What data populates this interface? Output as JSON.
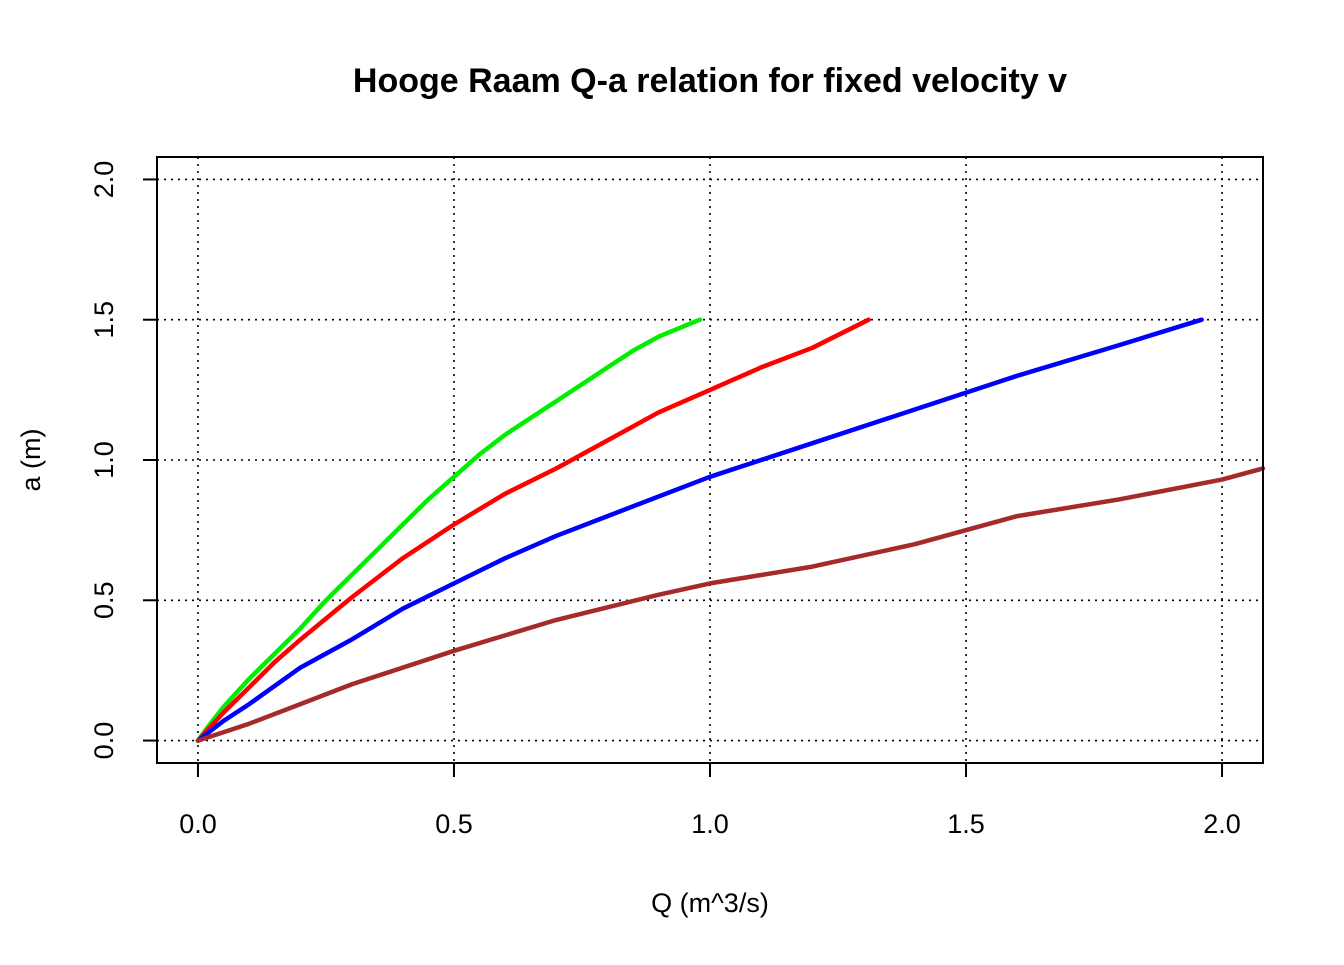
{
  "chart_data": {
    "type": "line",
    "title": "Hooge Raam Q-a relation for fixed velocity v",
    "xlabel": "Q (m^3/s)",
    "ylabel": "a (m)",
    "xlim": [
      -0.08,
      2.08
    ],
    "ylim": [
      -0.08,
      2.08
    ],
    "x_ticks": [
      0.0,
      0.5,
      1.0,
      1.5,
      2.0
    ],
    "x_tick_labels": [
      "0.0",
      "0.5",
      "1.0",
      "1.5",
      "2.0"
    ],
    "y_ticks": [
      0.0,
      0.5,
      1.0,
      1.5,
      2.0
    ],
    "y_tick_labels": [
      "0.0",
      "0.5",
      "1.0",
      "1.5",
      "2.0"
    ],
    "grid": true,
    "grid_style": "dotted",
    "legend": "none",
    "series": [
      {
        "color": "#00ee00",
        "points": [
          [
            0.0,
            0.0
          ],
          [
            0.02,
            0.05
          ],
          [
            0.05,
            0.12
          ],
          [
            0.1,
            0.22
          ],
          [
            0.15,
            0.31
          ],
          [
            0.2,
            0.4
          ],
          [
            0.25,
            0.5
          ],
          [
            0.3,
            0.59
          ],
          [
            0.35,
            0.68
          ],
          [
            0.4,
            0.77
          ],
          [
            0.45,
            0.86
          ],
          [
            0.5,
            0.94
          ],
          [
            0.55,
            1.02
          ],
          [
            0.6,
            1.09
          ],
          [
            0.65,
            1.15
          ],
          [
            0.7,
            1.21
          ],
          [
            0.75,
            1.27
          ],
          [
            0.8,
            1.33
          ],
          [
            0.85,
            1.39
          ],
          [
            0.9,
            1.44
          ],
          [
            0.98,
            1.5
          ]
        ]
      },
      {
        "color": "#ff0000",
        "points": [
          [
            0.0,
            0.0
          ],
          [
            0.02,
            0.04
          ],
          [
            0.05,
            0.1
          ],
          [
            0.1,
            0.19
          ],
          [
            0.15,
            0.28
          ],
          [
            0.2,
            0.36
          ],
          [
            0.3,
            0.51
          ],
          [
            0.4,
            0.65
          ],
          [
            0.5,
            0.77
          ],
          [
            0.6,
            0.88
          ],
          [
            0.7,
            0.97
          ],
          [
            0.8,
            1.07
          ],
          [
            0.9,
            1.17
          ],
          [
            1.0,
            1.25
          ],
          [
            1.1,
            1.33
          ],
          [
            1.2,
            1.4
          ],
          [
            1.31,
            1.5
          ]
        ]
      },
      {
        "color": "#0000ff",
        "points": [
          [
            0.0,
            0.0
          ],
          [
            0.05,
            0.07
          ],
          [
            0.1,
            0.13
          ],
          [
            0.2,
            0.26
          ],
          [
            0.3,
            0.36
          ],
          [
            0.4,
            0.47
          ],
          [
            0.5,
            0.56
          ],
          [
            0.6,
            0.65
          ],
          [
            0.7,
            0.73
          ],
          [
            0.8,
            0.8
          ],
          [
            1.0,
            0.94
          ],
          [
            1.2,
            1.06
          ],
          [
            1.4,
            1.18
          ],
          [
            1.6,
            1.3
          ],
          [
            1.8,
            1.41
          ],
          [
            1.96,
            1.5
          ]
        ]
      },
      {
        "color": "#a52a2a",
        "points": [
          [
            0.0,
            0.0
          ],
          [
            0.1,
            0.06
          ],
          [
            0.2,
            0.13
          ],
          [
            0.3,
            0.2
          ],
          [
            0.5,
            0.32
          ],
          [
            0.7,
            0.43
          ],
          [
            0.9,
            0.52
          ],
          [
            1.0,
            0.56
          ],
          [
            1.2,
            0.62
          ],
          [
            1.4,
            0.7
          ],
          [
            1.6,
            0.8
          ],
          [
            1.8,
            0.86
          ],
          [
            2.0,
            0.93
          ],
          [
            2.08,
            0.97
          ]
        ]
      }
    ]
  }
}
